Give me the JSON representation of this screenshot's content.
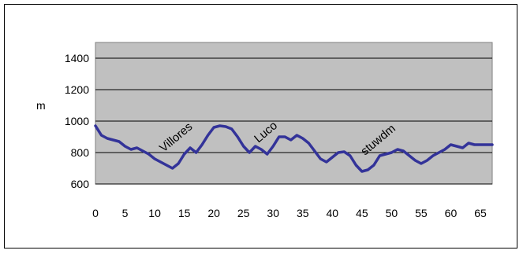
{
  "chart_data": {
    "type": "line",
    "title": "",
    "xlabel": "",
    "ylabel": "m",
    "xlim": [
      0,
      67
    ],
    "ylim": [
      600,
      1500
    ],
    "x_ticks": [
      0,
      5,
      10,
      15,
      20,
      25,
      30,
      35,
      40,
      45,
      50,
      55,
      60,
      65
    ],
    "y_ticks": [
      600,
      800,
      1000,
      1200,
      1400
    ],
    "grid": "horizontal",
    "plot_background": "#c0c0c0",
    "line_color": "#333399",
    "series": [
      {
        "name": "",
        "x": [
          0,
          1,
          2,
          3,
          4,
          5,
          6,
          7,
          8,
          9,
          10,
          11,
          12,
          13,
          14,
          15,
          16,
          17,
          18,
          19,
          20,
          21,
          22,
          23,
          24,
          25,
          26,
          27,
          28,
          29,
          30,
          31,
          32,
          33,
          34,
          35,
          36,
          37,
          38,
          39,
          40,
          41,
          42,
          43,
          44,
          45,
          46,
          47,
          48,
          49,
          50,
          51,
          52,
          53,
          54,
          55,
          56,
          57,
          58,
          59,
          60,
          61,
          62,
          63,
          64,
          65,
          66,
          67
        ],
        "y": [
          970,
          910,
          890,
          880,
          870,
          840,
          820,
          830,
          810,
          790,
          760,
          740,
          720,
          700,
          730,
          790,
          830,
          800,
          850,
          910,
          960,
          970,
          965,
          950,
          900,
          840,
          800,
          840,
          820,
          790,
          840,
          900,
          900,
          880,
          910,
          890,
          860,
          810,
          760,
          740,
          770,
          800,
          805,
          780,
          720,
          680,
          690,
          720,
          780,
          790,
          800,
          820,
          810,
          780,
          750,
          730,
          750,
          780,
          800,
          820,
          850,
          840,
          830,
          860,
          850,
          850,
          850,
          850
        ]
      }
    ],
    "annotations": [
      {
        "text": "Villores",
        "x": 11.5,
        "y": 800
      },
      {
        "text": "Luco",
        "x": 27.5,
        "y": 860
      },
      {
        "text": "stuwdm",
        "x": 45.5,
        "y": 780
      }
    ]
  }
}
